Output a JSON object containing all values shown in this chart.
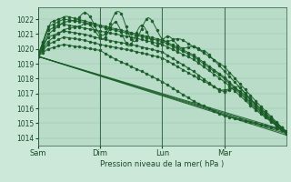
{
  "xlabel": "Pression niveau de la mer( hPa )",
  "ylim": [
    1013.5,
    1022.8
  ],
  "yticks": [
    1014,
    1015,
    1016,
    1017,
    1018,
    1019,
    1020,
    1021,
    1022
  ],
  "xtick_labels": [
    "Sam",
    "Dim",
    "Lun",
    "Mar"
  ],
  "xtick_positions": [
    0,
    48,
    96,
    144
  ],
  "xlim": [
    0,
    192
  ],
  "bg_color": "#cce8d8",
  "plot_bg_color": "#b8dcc8",
  "grid_color": "#90c4a8",
  "line_color": "#1a5c28",
  "vline_color": "#2a5a3a"
}
